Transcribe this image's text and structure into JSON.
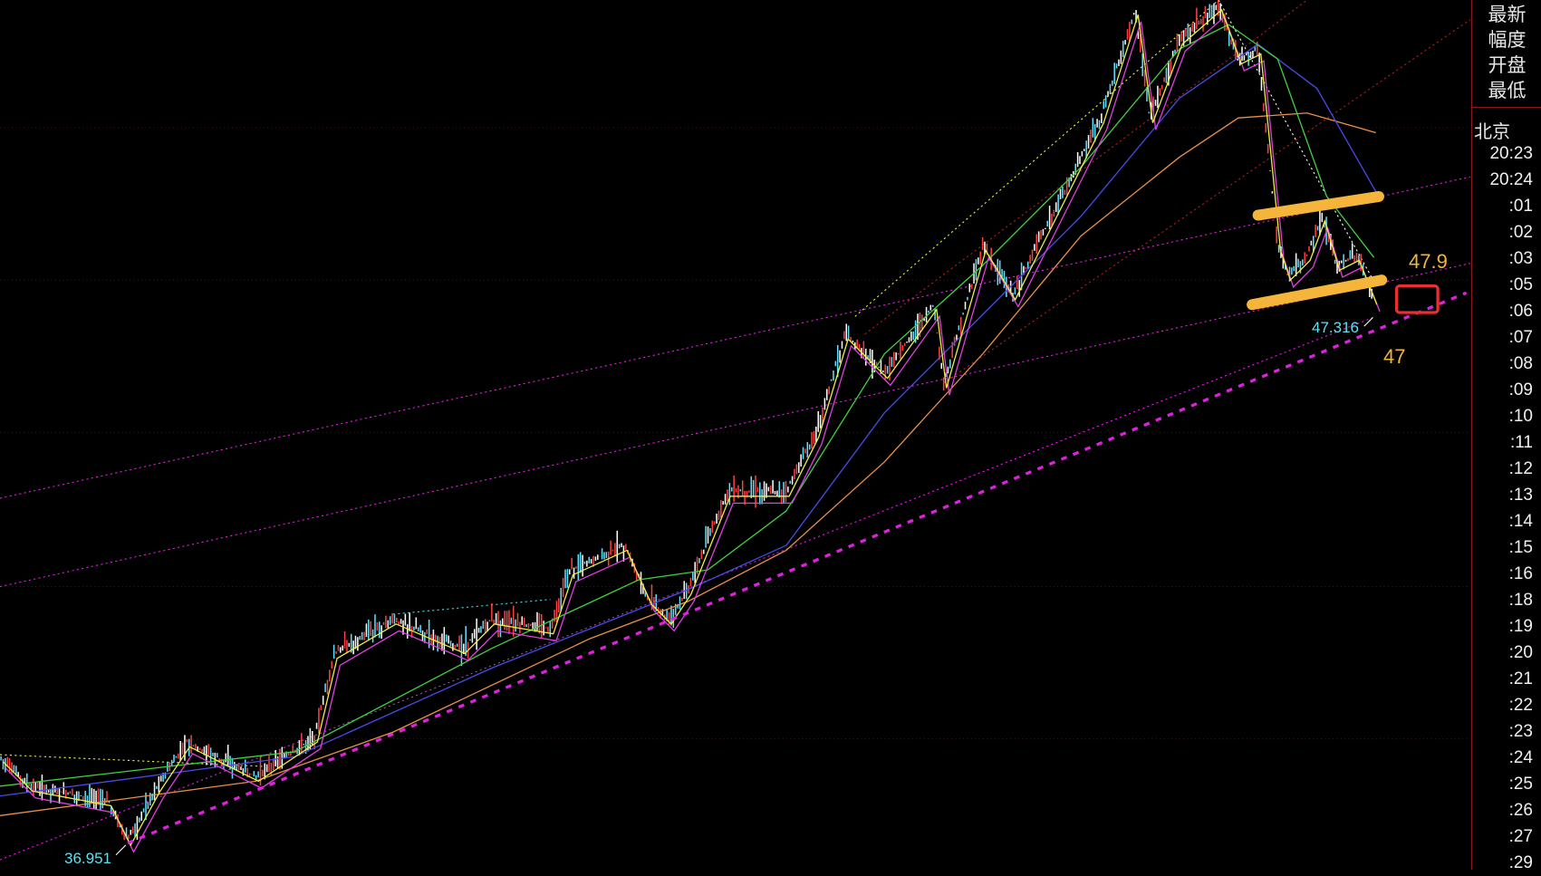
{
  "side_panel": {
    "header": [
      "最新",
      "幅度",
      "开盘",
      "最低"
    ],
    "city": "北京",
    "times": [
      "20:23",
      "20:24",
      ":01",
      ":02",
      ":03",
      ":05",
      ":06",
      ":07",
      ":08",
      ":09",
      ":10",
      ":11",
      ":12",
      ":13",
      ":14",
      ":15",
      ":16",
      ":18",
      ":19",
      ":20",
      ":21",
      ":22",
      ":23",
      ":24",
      ":25",
      ":26",
      ":27",
      ":29"
    ]
  },
  "annotations": {
    "high_label": "47.9",
    "low_label": "47",
    "last_low": "47.316",
    "start_low": "36.951"
  },
  "colors": {
    "background": "#000000",
    "trendline": "#e020e0",
    "highlight": "#f5b53a",
    "box": "#e83030",
    "label_cyan": "#5ee0f0",
    "ma_orange": "#e8904a",
    "ma_blue": "#4a4ae8",
    "ma_green": "#40d040",
    "ma_magenta": "#e040e0",
    "ma_yellow": "#f0f040"
  }
}
